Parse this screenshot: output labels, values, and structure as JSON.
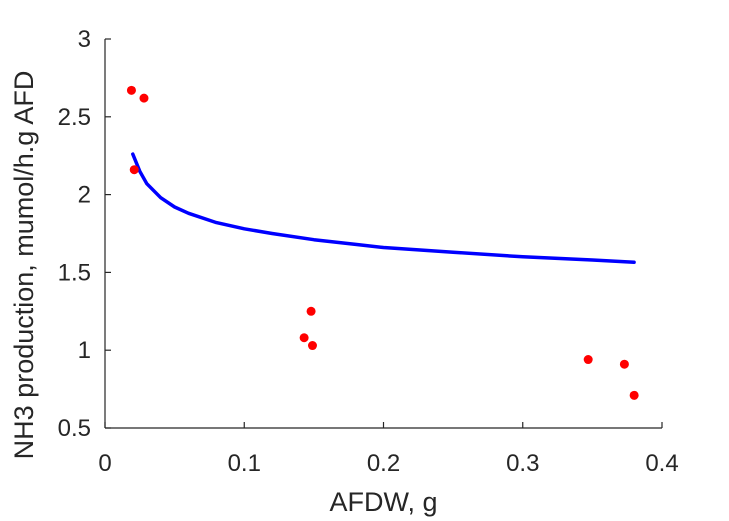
{
  "chart_data": {
    "type": "scatter",
    "title": "",
    "xlabel": "AFDW, g",
    "ylabel": "NH3 production, mumol/h.g AFD",
    "xlim": [
      0,
      0.4
    ],
    "ylim": [
      0.5,
      3
    ],
    "xticks": [
      0,
      0.1,
      0.2,
      0.3,
      0.4
    ],
    "xtick_labels": [
      "0",
      "0.1",
      "0.2",
      "0.3",
      "0.4"
    ],
    "yticks": [
      0.5,
      1,
      1.5,
      2,
      2.5,
      3
    ],
    "ytick_labels": [
      "0.5",
      "1",
      "1.5",
      "2",
      "2.5",
      "3"
    ],
    "grid": false,
    "legend": "none",
    "series": [
      {
        "kind": "scatter",
        "color": "#ff0000",
        "x": [
          0.019,
          0.021,
          0.028,
          0.143,
          0.148,
          0.149,
          0.347,
          0.373,
          0.38
        ],
        "y": [
          2.67,
          2.16,
          2.62,
          1.08,
          1.25,
          1.03,
          0.94,
          0.91,
          0.71
        ]
      },
      {
        "kind": "line",
        "color": "#0000ff",
        "x": [
          0.02,
          0.025,
          0.03,
          0.04,
          0.05,
          0.06,
          0.08,
          0.1,
          0.12,
          0.15,
          0.18,
          0.2,
          0.25,
          0.3,
          0.35,
          0.38
        ],
        "y": [
          2.26,
          2.15,
          2.07,
          1.98,
          1.92,
          1.88,
          1.82,
          1.78,
          1.75,
          1.71,
          1.68,
          1.66,
          1.63,
          1.6,
          1.58,
          1.565
        ]
      }
    ]
  }
}
